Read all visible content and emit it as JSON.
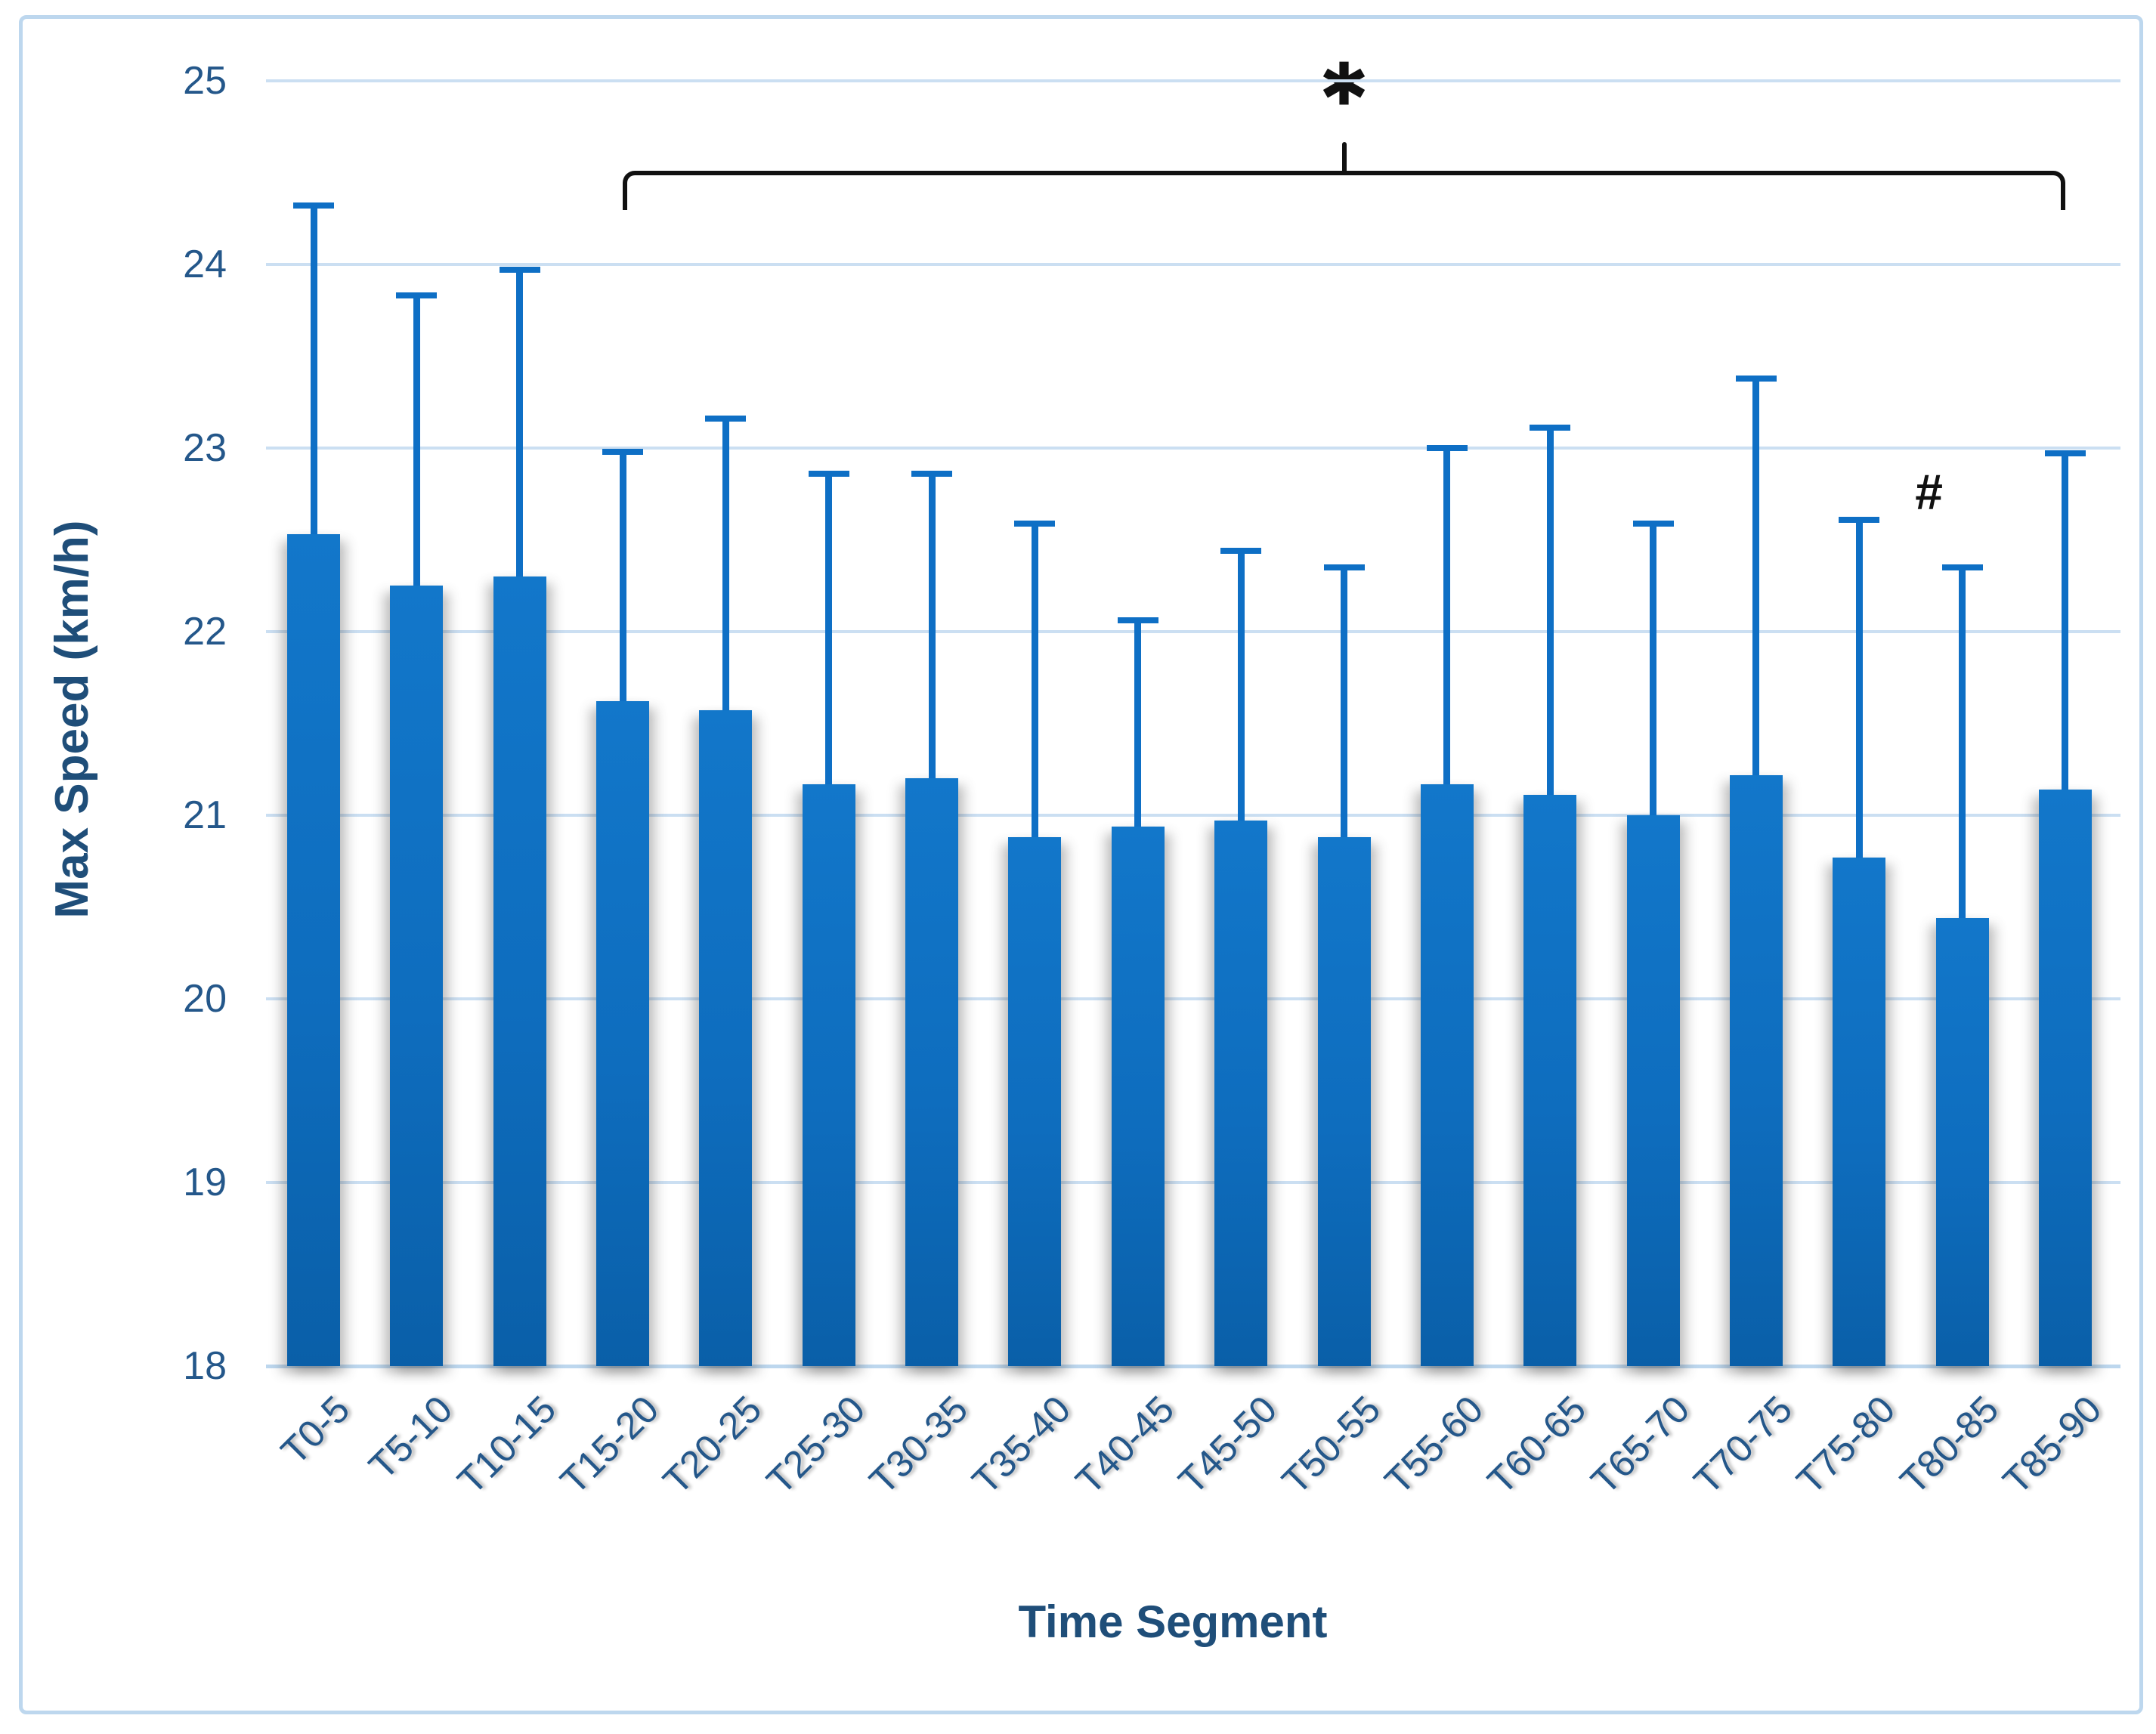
{
  "chart_data": {
    "type": "bar",
    "title": "",
    "xlabel": "Time Segment",
    "ylabel": "Max Speed (km/h)",
    "ylim": [
      18,
      25
    ],
    "ytick_step": 1,
    "ytick_labels": [
      "25",
      "24",
      "23",
      "22",
      "21",
      "20",
      "19",
      "18"
    ],
    "grid": true,
    "legend": false,
    "categories": [
      "T0-5",
      "T5-10",
      "T10-15",
      "T15-20",
      "T20-25",
      "T25-30",
      "T30-35",
      "T35-40",
      "T40-45",
      "T45-50",
      "T50-55",
      "T55-60",
      "T60-65",
      "T65-70",
      "T70-75",
      "T75-80",
      "T80-85",
      "T85-90"
    ],
    "series": [
      {
        "name": "Max Speed",
        "values": [
          22.53,
          22.25,
          22.3,
          21.62,
          21.57,
          21.17,
          21.2,
          20.88,
          20.94,
          20.97,
          20.88,
          21.17,
          21.11,
          21.0,
          21.22,
          20.77,
          20.44,
          21.14
        ],
        "error_top": [
          24.32,
          23.83,
          23.97,
          22.98,
          23.16,
          22.86,
          22.86,
          22.59,
          22.06,
          22.44,
          22.35,
          23.0,
          23.11,
          22.59,
          23.38,
          22.61,
          22.35,
          22.97
        ]
      }
    ],
    "annotations": {
      "bracket": {
        "from": "T15-20",
        "to": "T85-90",
        "symbol": "✱"
      },
      "hash": {
        "over": "T80-85",
        "symbol": "#"
      }
    }
  },
  "style": {
    "bar_color": "#0E6DBE",
    "error_bar_color": "#0E6FC5",
    "gridline_color": "#CBDFF2",
    "frame_border_color": "#BDD7EE",
    "axis_text_color": "#24578A",
    "axis_title_color": "#1F4E79",
    "annotation_color": "#111111"
  }
}
